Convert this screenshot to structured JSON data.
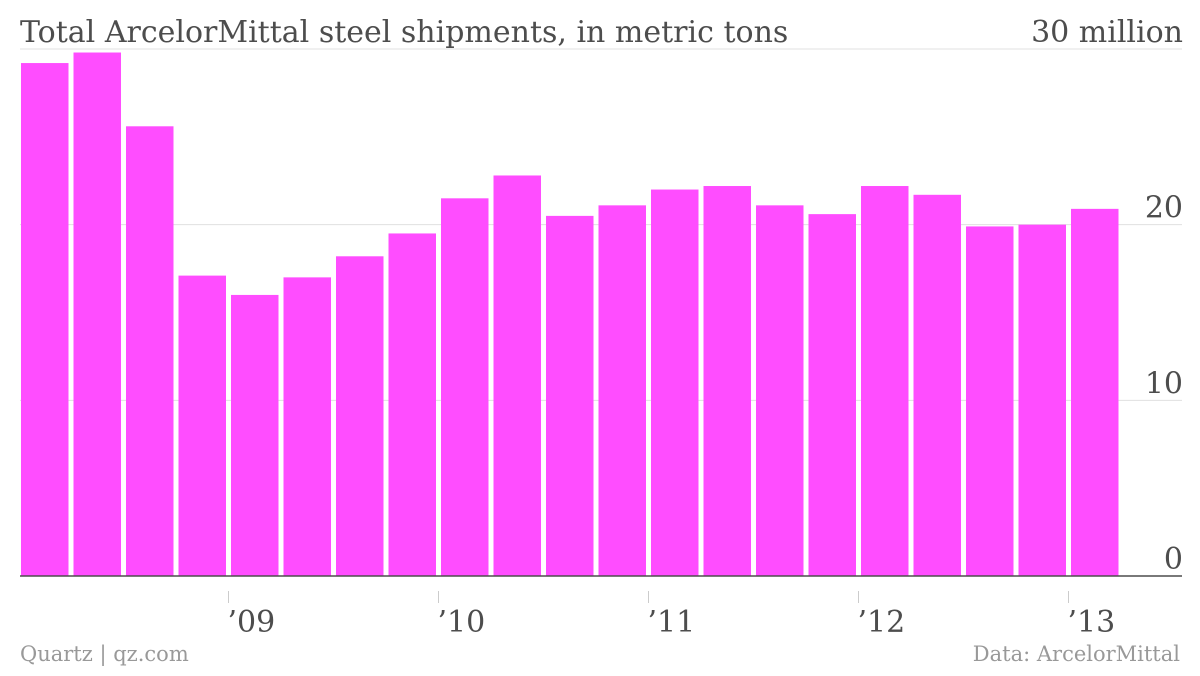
{
  "chart_data": {
    "type": "bar",
    "title": "Total ArcelorMittal steel shipments, in metric tons",
    "ylabel": "",
    "xlabel": "",
    "y_unit_label": "million",
    "ylim": [
      0,
      30
    ],
    "y_ticks": [
      0,
      10,
      20,
      30
    ],
    "y_tick_labels": [
      "0",
      "10",
      "20",
      "30 million"
    ],
    "x_tick_labels": [
      {
        "label": "’09",
        "after_bar_index": 3
      },
      {
        "label": "’10",
        "after_bar_index": 7
      },
      {
        "label": "’11",
        "after_bar_index": 11
      },
      {
        "label": "’12",
        "after_bar_index": 15
      },
      {
        "label": "’13",
        "after_bar_index": 19
      }
    ],
    "color": "#ff4dff",
    "grid": true,
    "values": [
      29.2,
      29.8,
      25.6,
      17.1,
      16.0,
      17.0,
      18.2,
      19.5,
      21.5,
      22.8,
      20.5,
      21.1,
      22.0,
      22.2,
      21.1,
      20.6,
      22.2,
      21.7,
      19.9,
      20.0,
      20.9
    ]
  },
  "footer": {
    "source_left": "Quartz | qz.com",
    "source_right": "Data: ArcelorMittal"
  }
}
